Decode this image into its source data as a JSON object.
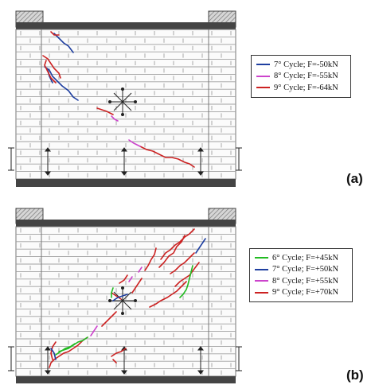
{
  "colors": {
    "cycle_6": "#22bb22",
    "cycle_7": "#1f3fa0",
    "cycle_8": "#cc44cc",
    "cycle_9": "#cc2222",
    "mortar": "#9a9a9a",
    "beam": "#555555",
    "hatch": "#9a9a9a"
  },
  "panels": [
    {
      "label": "(a)",
      "legend": [
        {
          "text": "7° Cycle; F=-50kN",
          "color_key": "cycle_7"
        },
        {
          "text": "8° Cycle; F=-55kN",
          "color_key": "cycle_8"
        },
        {
          "text": "9° Cycle; F=-64kN",
          "color_key": "cycle_9"
        }
      ]
    },
    {
      "label": "(b)",
      "legend": [
        {
          "text": "6° Cycle; F=+45kN",
          "color_key": "cycle_6"
        },
        {
          "text": "7° Cycle; F=+50kN",
          "color_key": "cycle_7"
        },
        {
          "text": "8° Cycle; F=+55kN",
          "color_key": "cycle_8"
        },
        {
          "text": "9° Cycle; F=+70kN",
          "color_key": "cycle_9"
        }
      ]
    }
  ]
}
